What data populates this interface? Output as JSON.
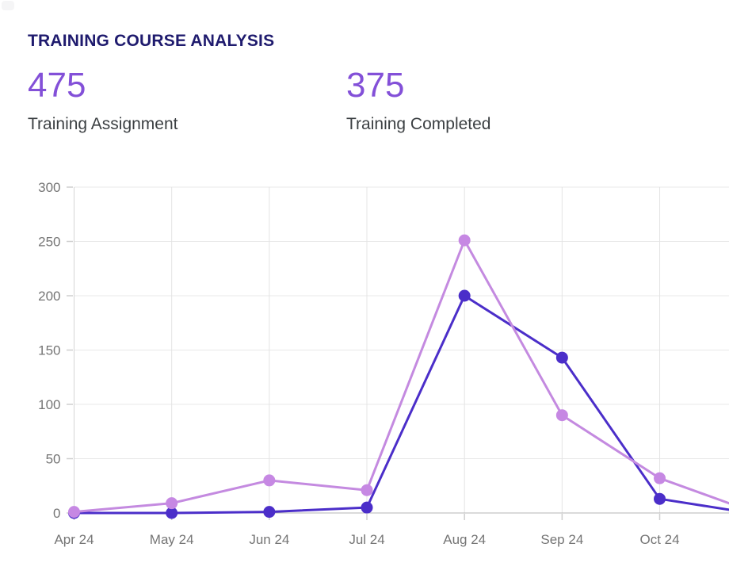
{
  "header": {
    "title": "TRAINING COURSE ANALYSIS"
  },
  "stats": [
    {
      "value": "475",
      "label": "Training Assignment"
    },
    {
      "value": "375",
      "label": "Training Completed"
    }
  ],
  "chart_data": {
    "type": "line",
    "title": "",
    "categories": [
      "Apr 24",
      "May 24",
      "Jun 24",
      "Jul 24",
      "Aug 24",
      "Sep 24",
      "Oct 24"
    ],
    "series": [
      {
        "id": "training-assignment",
        "name": "Training Assignment",
        "color": "#c48ae0",
        "point_color": "#c688e3",
        "values": [
          1,
          9,
          30,
          21,
          251,
          90,
          32
        ],
        "value_at_right_clip": 9
      },
      {
        "id": "training-completed",
        "name": "Training Completed",
        "color": "#4b2ec9",
        "point_color": "#4b2ec9",
        "values": [
          0,
          0,
          1,
          5,
          200,
          143,
          13
        ],
        "value_at_right_clip": 3
      }
    ],
    "xlabel": "",
    "ylabel": "",
    "ylim": [
      0,
      300
    ],
    "ytick_step": 50,
    "yticks": [
      0,
      50,
      100,
      150,
      200,
      250,
      300
    ],
    "grid": true,
    "legend": "none",
    "x_axis_clipped_right": true
  },
  "colors": {
    "title": "#1f1b6e",
    "stat_value": "#8350d8",
    "stat_label": "#3c4043",
    "axis_text": "#757575",
    "gridline": "#e8e8e8",
    "x_axis_line": "#b4b4b4",
    "y_axis_line": "#d6d6d6",
    "tick": "#cfcfcf"
  }
}
